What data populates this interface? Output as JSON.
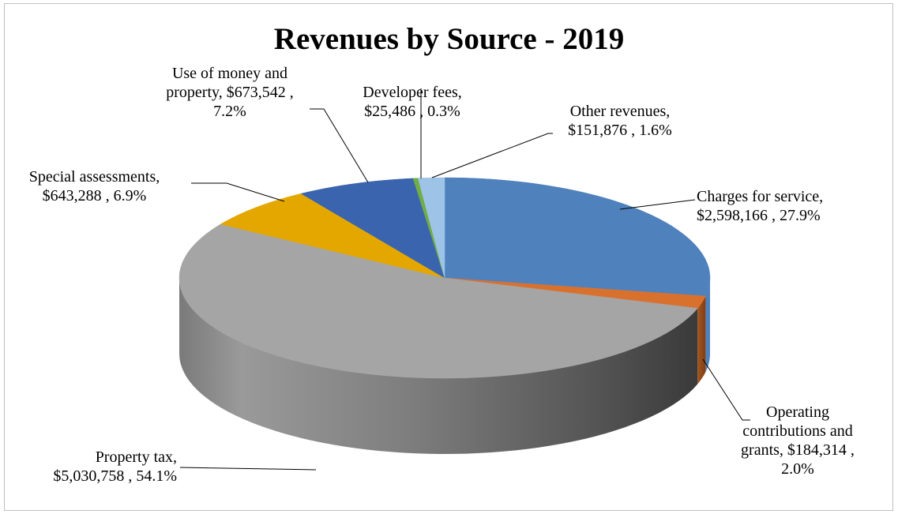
{
  "chart_data": {
    "type": "pie",
    "title": "Revenues by Source - 2019",
    "slices": [
      {
        "name": "Charges for service",
        "value": "$2,598,166",
        "percent": 27.9,
        "color": "#4f81bd",
        "label_lines": [
          "Charges for service,",
          "$2,598,166 , 27.9%"
        ]
      },
      {
        "name": "Operating contributions and grants",
        "value": "$184,314",
        "percent": 2.0,
        "color": "#d9712e",
        "label_lines": [
          "Operating",
          "contributions and",
          "grants,  $184,314 ,",
          "2.0%"
        ]
      },
      {
        "name": "Property tax",
        "value": "$5,030,758",
        "percent": 54.1,
        "color": "#a5a5a5",
        "label_lines": [
          "Property tax,",
          "$5,030,758 , 54.1%"
        ]
      },
      {
        "name": "Special assessments",
        "value": "$643,288",
        "percent": 6.9,
        "color": "#e4a700",
        "label_lines": [
          "Special assessments,",
          "$643,288 , 6.9%"
        ]
      },
      {
        "name": "Use of money and property",
        "value": "$673,542",
        "percent": 7.2,
        "color": "#3a64ad",
        "label_lines": [
          "Use of money and",
          "property,  $673,542 ,",
          "7.2%"
        ]
      },
      {
        "name": "Developer fees",
        "value": "$25,486",
        "percent": 0.3,
        "color": "#70ad47",
        "label_lines": [
          "Developer fees,",
          "$25,486 , 0.3%"
        ]
      },
      {
        "name": "Other revenues",
        "value": "$151,876",
        "percent": 1.6,
        "color": "#9dc3e6",
        "label_lines": [
          "Other revenues,",
          "$151,876 , 1.6%"
        ]
      }
    ],
    "start_angle": "12 o'clock",
    "direction": "clockwise",
    "style": "3D pie",
    "legend": "none"
  }
}
